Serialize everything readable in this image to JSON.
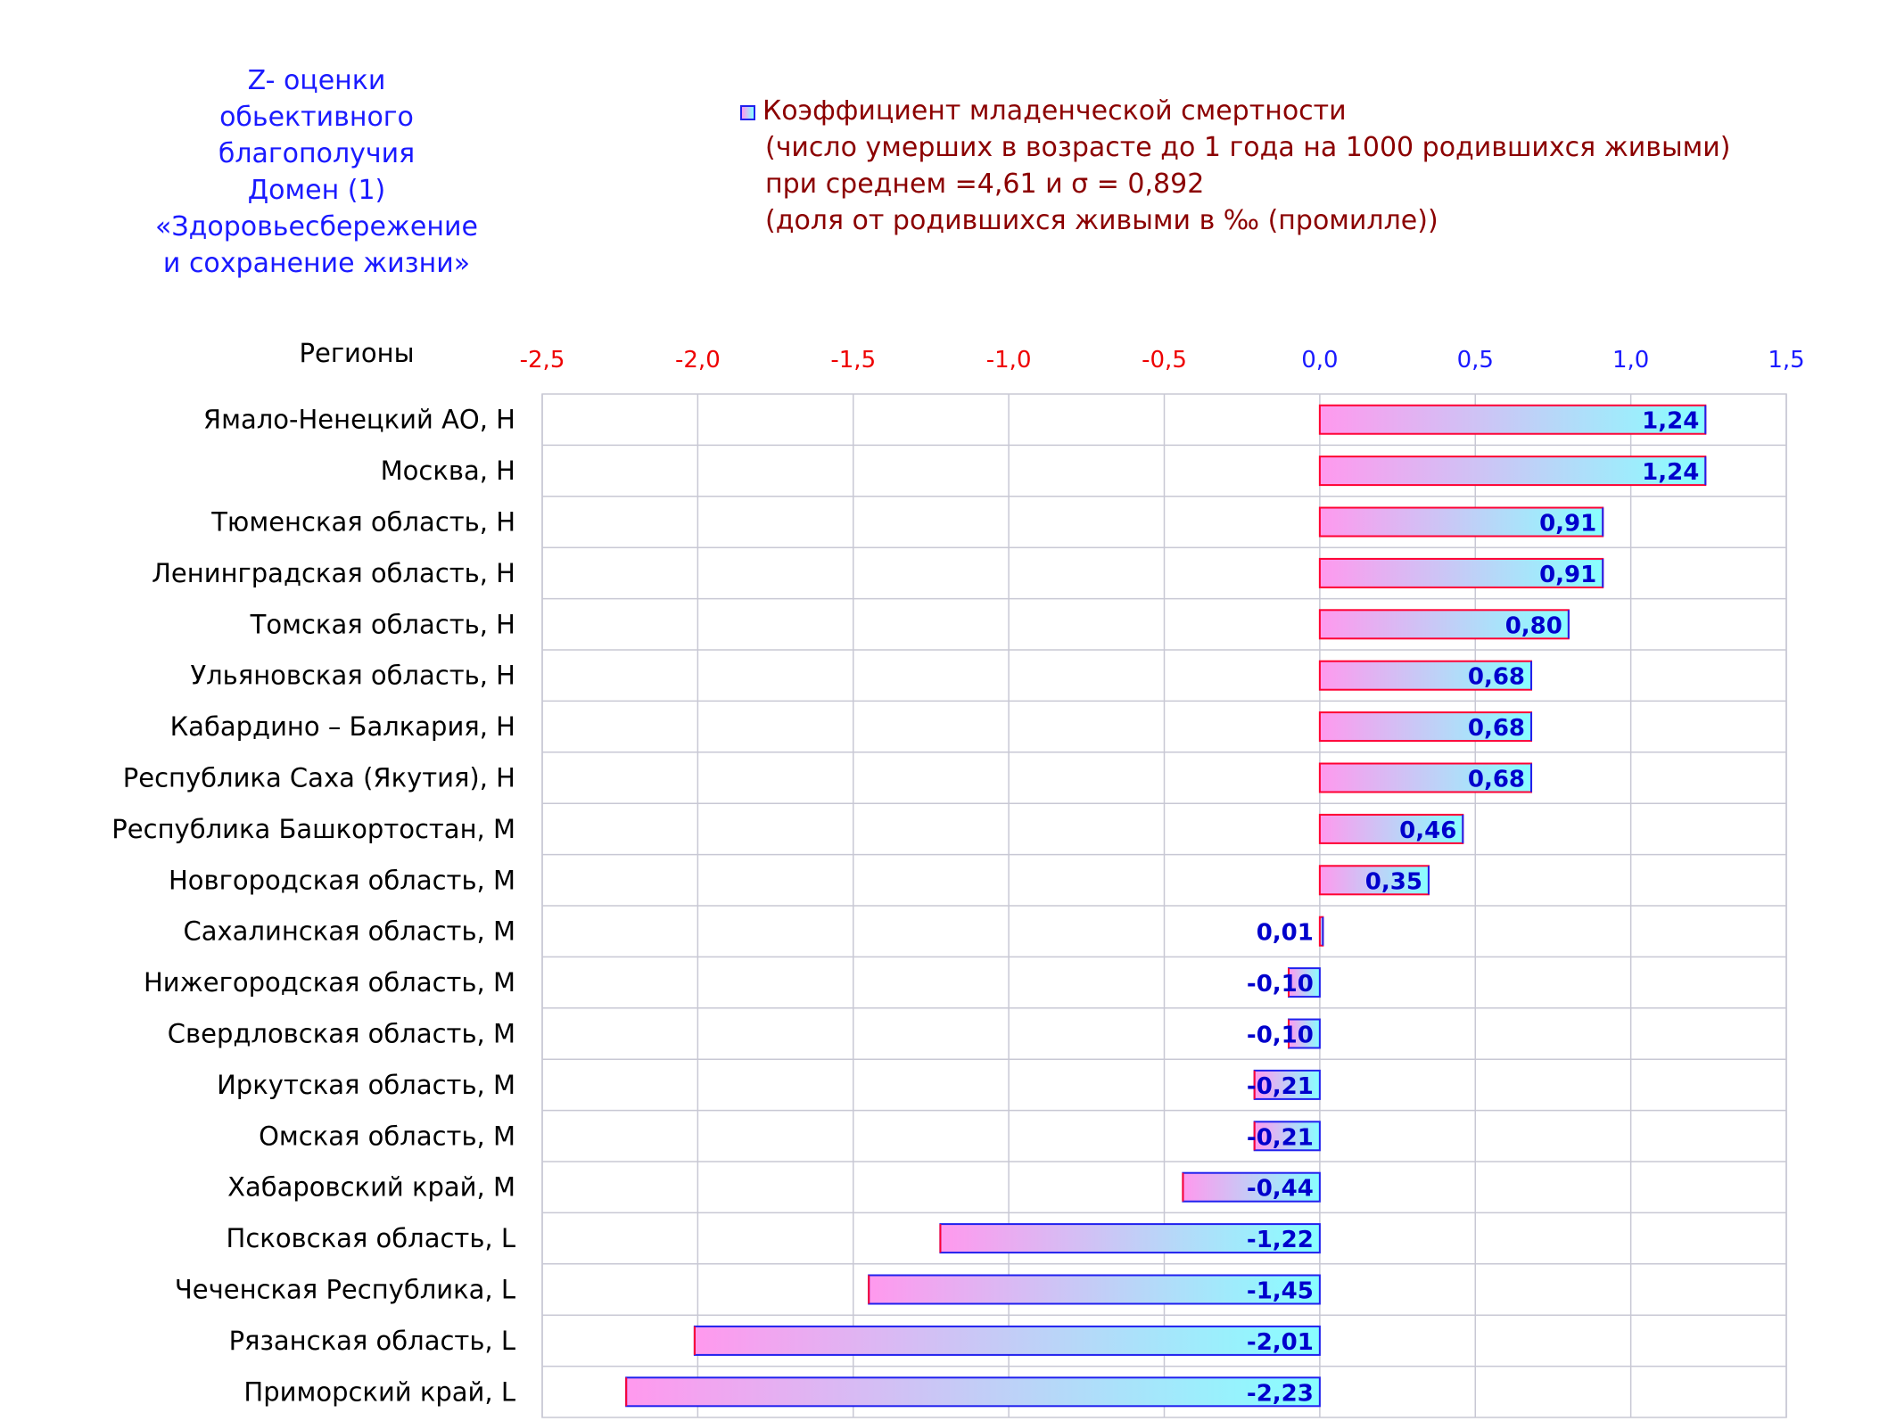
{
  "side_title": {
    "lines": [
      "Z- оценки",
      "обьективного",
      "благополучия",
      "Домен (1)",
      "«Здоровьесбережение",
      "и сохранение жизни»"
    ]
  },
  "legend": {
    "series_label": "Коэффициент младенческой смертности",
    "line2": "(число умерших в возрасте до 1 года на 1000 родившихся живыми)",
    "line3": "при среднем =4,61  и σ = 0,892",
    "line4": "(доля от родившихся живыми в ‰ (промилле))"
  },
  "colors": {
    "title": "#1a1aff",
    "legend_text": "#8b0000",
    "negative_tick": "#ee0000",
    "positive_tick": "#1a1aff",
    "bar_left": "#ff99ee",
    "bar_right": "#88ffff",
    "bar_border_left": "#ff0033",
    "bar_border_right": "#2020ee",
    "value_label": "#0000cc",
    "grid": "#c8c8d4"
  },
  "chart_data": {
    "type": "bar",
    "orientation": "horizontal",
    "category_axis_title": "Регионы",
    "categories": [
      "Ямало-Ненецкий АО,  Н",
      "Москва,  Н",
      "Тюменская область,  Н",
      "Ленинградская область,  Н",
      "Томская область,  Н",
      "Ульяновская область,  Н",
      "Кабардино – Балкария,  Н",
      "Республика Саха (Якутия),  Н",
      "Республика Башкортостан,  М",
      "Новгородская область,  М",
      "Сахалинская область,  М",
      "Нижегородская область,  М",
      "Свердловская область,  М",
      "Иркутская область,  М",
      "Омская область,  М",
      "Хабаровский край,  М",
      "Псковская область,  L",
      "Чеченская Республика,  L",
      "Рязанская область,  L",
      "Приморский край,  L"
    ],
    "values": [
      1.24,
      1.24,
      0.91,
      0.91,
      0.8,
      0.68,
      0.68,
      0.68,
      0.46,
      0.35,
      0.01,
      -0.1,
      -0.1,
      -0.21,
      -0.21,
      -0.44,
      -1.22,
      -1.45,
      -2.01,
      -2.23
    ],
    "value_labels": [
      "1,24",
      "1,24",
      "0,91",
      "0,91",
      "0,80",
      "0,68",
      "0,68",
      "0,68",
      "0,46",
      "0,35",
      "0,01",
      "-0,10",
      "-0,10",
      "-0,21",
      "-0,21",
      "-0,44",
      "-1,22",
      "-1,45",
      "-2,01",
      "-2,23"
    ],
    "xlim": [
      -2.5,
      1.5
    ],
    "ticks": [
      -2.5,
      -2.0,
      -1.5,
      -1.0,
      -0.5,
      0.0,
      0.5,
      1.0,
      1.5
    ],
    "tick_labels": [
      "-2,5",
      "-2,0",
      "-1,5",
      "-1,0",
      "-0,5",
      "0,0",
      "0,5",
      "1,0",
      "1,5"
    ],
    "grid": true,
    "legend_position": "top"
  }
}
